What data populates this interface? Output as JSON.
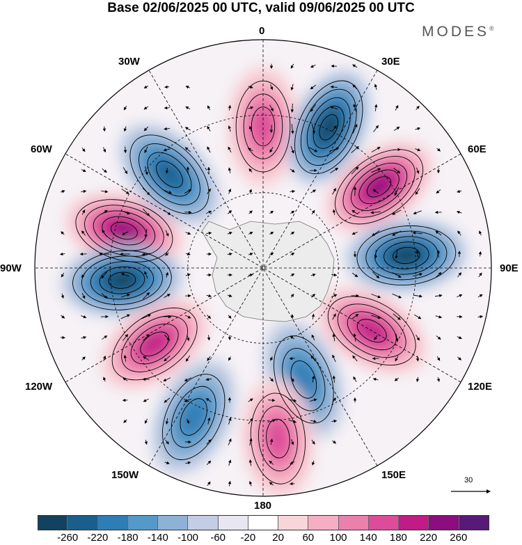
{
  "title": "Base 02/06/2025 00 UTC, valid 09/06/2025 00 UTC",
  "brand": "MODES",
  "brand_mark": "®",
  "longitudes": {
    "top": "0",
    "top_right": "30E",
    "right_upper": "60E",
    "right": "90E",
    "right_lower": "120E",
    "bottom_right": "150E",
    "bottom": "180",
    "bottom_left": "150W",
    "left_lower": "120W",
    "left": "90W",
    "left_upper": "60W",
    "top_left": "30W"
  },
  "reference_vector": "30",
  "colorbar": {
    "colors": [
      "#12425f",
      "#1a5f8b",
      "#2f7db5",
      "#5599c9",
      "#8eb2d6",
      "#c3cde3",
      "#e8e6f1",
      "#ffffff",
      "#f8d5d9",
      "#f5aec3",
      "#ec80ad",
      "#dc4c98",
      "#c01b86",
      "#8a0e7d",
      "#581a77"
    ],
    "ticks": [
      "-260",
      "-220",
      "-180",
      "-140",
      "-100",
      "-60",
      "-20",
      "20",
      "60",
      "100",
      "140",
      "180",
      "220",
      "260"
    ]
  },
  "anomalies": [
    {
      "kind": "positive",
      "level": 4,
      "lon": -75,
      "dist": 0.63
    },
    {
      "kind": "negative",
      "level": 4,
      "lon": -95,
      "dist": 0.62
    },
    {
      "kind": "negative",
      "level": 3,
      "lon": -45,
      "dist": 0.58
    },
    {
      "kind": "positive",
      "level": 2,
      "lon": 0,
      "dist": 0.62
    },
    {
      "kind": "negative",
      "level": 4,
      "lon": 25,
      "dist": 0.68
    },
    {
      "kind": "positive",
      "level": 4,
      "lon": 55,
      "dist": 0.62
    },
    {
      "kind": "negative",
      "level": 4,
      "lon": 85,
      "dist": 0.63
    },
    {
      "kind": "positive",
      "level": 3,
      "lon": 120,
      "dist": 0.55
    },
    {
      "kind": "negative",
      "level": 2,
      "lon": 160,
      "dist": 0.52
    },
    {
      "kind": "positive",
      "level": 2,
      "lon": 175,
      "dist": 0.75
    },
    {
      "kind": "negative",
      "level": 2,
      "lon": -155,
      "dist": 0.72
    },
    {
      "kind": "positive",
      "level": 3,
      "lon": -125,
      "dist": 0.58
    }
  ]
}
